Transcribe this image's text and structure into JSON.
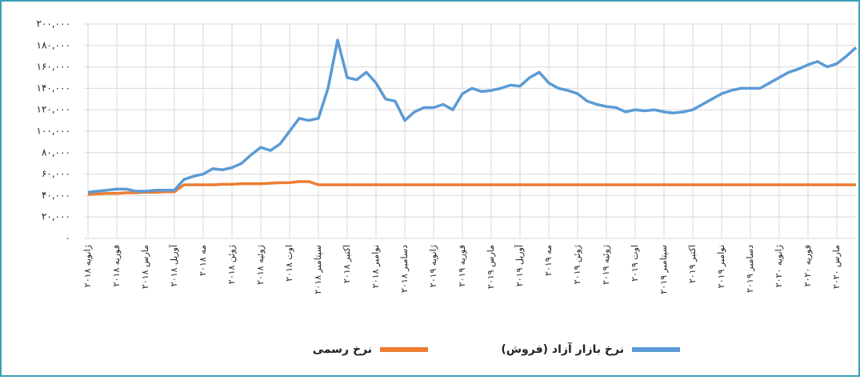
{
  "chart_data": {
    "type": "line",
    "categories": [
      "ژانویه ۲۰۱۸",
      null,
      null,
      "فوریه ۲۰۱۸",
      null,
      null,
      "مارس ۲۰۱۸",
      null,
      null,
      "آوریل ۲۰۱۸",
      null,
      null,
      "مه ۲۰۱۸",
      null,
      null,
      "ژوئن ۲۰۱۸",
      null,
      null,
      "ژوئیه ۲۰۱۸",
      null,
      null,
      "اوت ۲۰۱۸",
      null,
      null,
      "سپتامبر ۲۰۱۸",
      null,
      null,
      "اکتبر ۲۰۱۸",
      null,
      null,
      "نوامبر ۲۰۱۸",
      null,
      null,
      "دسامبر ۲۰۱۸",
      null,
      null,
      "ژانویه ۲۰۱۹",
      null,
      null,
      "فوریه ۲۰۱۹",
      null,
      null,
      "مارس ۲۰۱۹",
      null,
      null,
      "آوریل ۲۰۱۹",
      null,
      null,
      "مه ۲۰۱۹",
      null,
      null,
      "ژوئن ۲۰۱۹",
      null,
      null,
      "ژوئیه ۲۰۱۹",
      null,
      null,
      "اوت ۲۰۱۹",
      null,
      null,
      "سپتامبر ۲۰۱۹",
      null,
      null,
      "اکتبر ۲۰۱۹",
      null,
      null,
      "نوامبر ۲۰۱۹",
      null,
      null,
      "دسامبر ۲۰۱۹",
      null,
      null,
      "ژانویه ۲۰۲۰",
      null,
      null,
      "فوریه ۲۰۲۰",
      null,
      null,
      "مارس ۲۰۲۰",
      null,
      null
    ],
    "series": [
      {
        "name": "نرخ بازار آزاد (فروش)",
        "color": "#5b9bd5",
        "values": [
          43000,
          44000,
          45000,
          46000,
          46000,
          44000,
          44000,
          45000,
          45000,
          45000,
          55000,
          58000,
          60000,
          65000,
          64000,
          66000,
          70000,
          78000,
          85000,
          82000,
          88000,
          100000,
          112000,
          110000,
          112000,
          140000,
          185000,
          150000,
          148000,
          155000,
          145000,
          130000,
          128000,
          110000,
          118000,
          122000,
          122000,
          125000,
          120000,
          135000,
          140000,
          137000,
          138000,
          140000,
          143000,
          142000,
          150000,
          155000,
          145000,
          140000,
          138000,
          135000,
          128000,
          125000,
          123000,
          122000,
          118000,
          120000,
          119000,
          120000,
          118000,
          117000,
          118000,
          120000,
          125000,
          130000,
          135000,
          138000,
          140000,
          140000,
          140000,
          145000,
          150000,
          155000,
          158000,
          162000,
          165000,
          160000,
          163000,
          170000,
          178000
        ]
      },
      {
        "name": "نرخ رسمی",
        "color": "#ed7d31",
        "values": [
          41000,
          41500,
          42000,
          42000,
          42500,
          42500,
          43000,
          43000,
          43500,
          43500,
          50000,
          50000,
          50000,
          50000,
          50500,
          50500,
          51000,
          51000,
          51000,
          51500,
          52000,
          52000,
          53000,
          53000,
          50000,
          50000,
          50000,
          50000,
          50000,
          50000,
          50000,
          50000,
          50000,
          50000,
          50000,
          50000,
          50000,
          50000,
          50000,
          50000,
          50000,
          50000,
          50000,
          50000,
          50000,
          50000,
          50000,
          50000,
          50000,
          50000,
          50000,
          50000,
          50000,
          50000,
          50000,
          50000,
          50000,
          50000,
          50000,
          50000,
          50000,
          50000,
          50000,
          50000,
          50000,
          50000,
          50000,
          50000,
          50000,
          50000,
          50000,
          50000,
          50000,
          50000,
          50000,
          50000,
          50000,
          50000,
          50000,
          50000,
          50000
        ]
      }
    ],
    "ylim": [
      0,
      200000
    ],
    "yticks": [
      {
        "value": 0,
        "label": "٠"
      },
      {
        "value": 20000,
        "label": "۲۰,۰۰۰"
      },
      {
        "value": 40000,
        "label": "۴۰,۰۰۰"
      },
      {
        "value": 60000,
        "label": "۶۰,۰۰۰"
      },
      {
        "value": 80000,
        "label": "۸۰,۰۰۰"
      },
      {
        "value": 100000,
        "label": "۱۰۰,۰۰۰"
      },
      {
        "value": 120000,
        "label": "۱۲۰,۰۰۰"
      },
      {
        "value": 140000,
        "label": "۱۴۰,۰۰۰"
      },
      {
        "value": 160000,
        "label": "۱۶۰,۰۰۰"
      },
      {
        "value": 180000,
        "label": "۱۸۰,۰۰۰"
      },
      {
        "value": 200000,
        "label": "۲۰۰,۰۰۰"
      }
    ],
    "grid": true,
    "legend": "bottom"
  }
}
